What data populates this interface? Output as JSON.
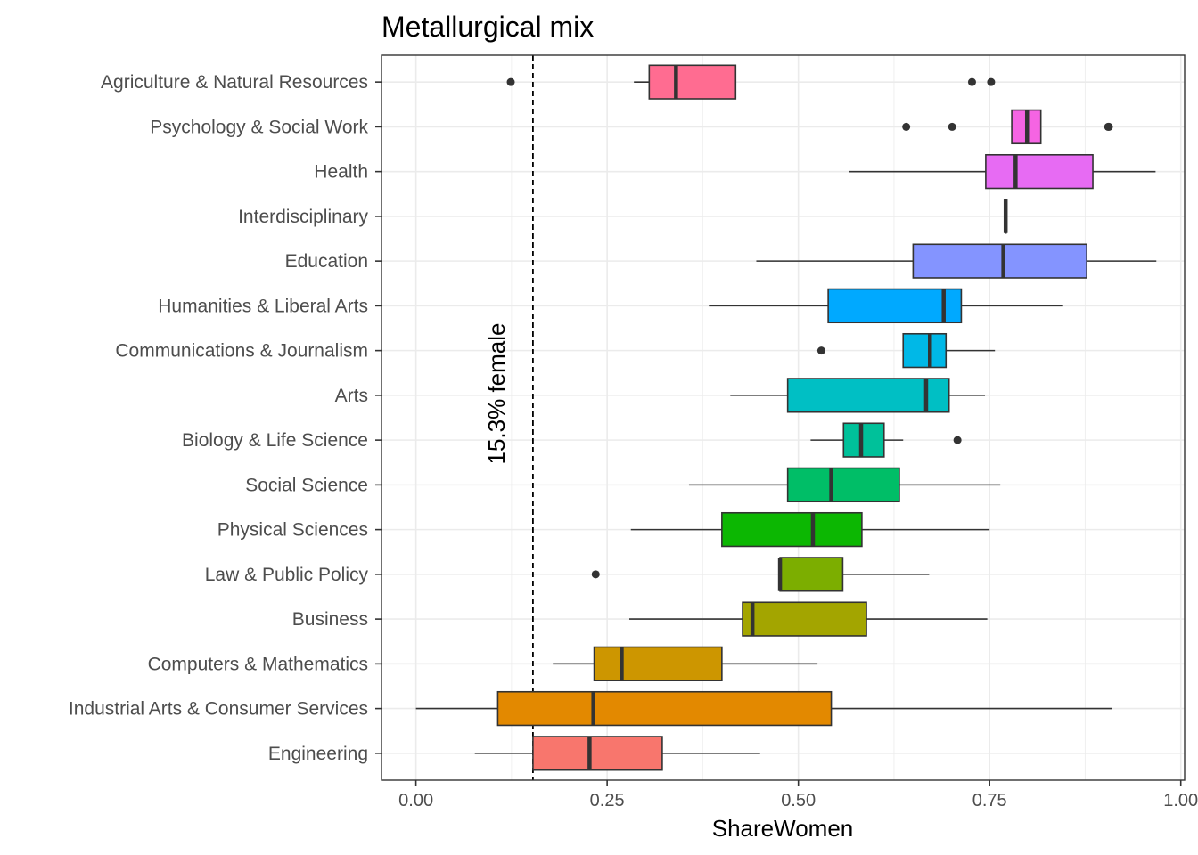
{
  "chart_data": {
    "type": "boxplot",
    "title": "Metallurgical mix",
    "xlabel": "ShareWomen",
    "ylabel": "",
    "xlim": [
      -0.045,
      1.005
    ],
    "x_ticks": [
      0,
      0.25,
      0.5,
      0.75,
      1.0
    ],
    "x_tick_labels": [
      "0.00",
      "0.25",
      "0.50",
      "0.75",
      "1.00"
    ],
    "grid": true,
    "legend": "none",
    "reference_line": {
      "x": 0.153,
      "style": "dashed",
      "label": "15.3% female"
    },
    "categories": [
      {
        "name": "Agriculture & Natural Resources",
        "color": "#FF6C91",
        "whisker_low": 0.285,
        "q1": 0.305,
        "median": 0.34,
        "q3": 0.418,
        "whisker_high": 0.418,
        "outliers": [
          0.124,
          0.727,
          0.752
        ]
      },
      {
        "name": "Psychology & Social Work",
        "color": "#F564E3",
        "whisker_low": 0.779,
        "q1": 0.779,
        "median": 0.799,
        "q3": 0.817,
        "whisker_high": 0.817,
        "outliers": [
          0.641,
          0.701,
          0.905,
          0.906
        ]
      },
      {
        "name": "Health",
        "color": "#E76BF3",
        "whisker_low": 0.566,
        "q1": 0.745,
        "median": 0.784,
        "q3": 0.885,
        "whisker_high": 0.967,
        "outliers": []
      },
      {
        "name": "Interdisciplinary",
        "color": "#C77CFF",
        "whisker_low": 0.771,
        "q1": 0.771,
        "median": 0.771,
        "q3": 0.771,
        "whisker_high": 0.771,
        "outliers": []
      },
      {
        "name": "Education",
        "color": "#8494FF",
        "whisker_low": 0.445,
        "q1": 0.65,
        "median": 0.768,
        "q3": 0.877,
        "whisker_high": 0.968,
        "outliers": []
      },
      {
        "name": "Humanities & Liberal Arts",
        "color": "#00A9FF",
        "whisker_low": 0.383,
        "q1": 0.539,
        "median": 0.69,
        "q3": 0.713,
        "whisker_high": 0.845,
        "outliers": []
      },
      {
        "name": "Communications & Journalism",
        "color": "#00B8E7",
        "whisker_low": 0.637,
        "q1": 0.637,
        "median": 0.672,
        "q3": 0.693,
        "whisker_high": 0.757,
        "outliers": [
          0.53
        ]
      },
      {
        "name": "Arts",
        "color": "#00BFC4",
        "whisker_low": 0.411,
        "q1": 0.486,
        "median": 0.667,
        "q3": 0.697,
        "whisker_high": 0.744,
        "outliers": []
      },
      {
        "name": "Biology & Life Science",
        "color": "#00C19A",
        "whisker_low": 0.516,
        "q1": 0.559,
        "median": 0.582,
        "q3": 0.612,
        "whisker_high": 0.637,
        "outliers": [
          0.708
        ]
      },
      {
        "name": "Social Science",
        "color": "#00BE67",
        "whisker_low": 0.357,
        "q1": 0.486,
        "median": 0.543,
        "q3": 0.632,
        "whisker_high": 0.764,
        "outliers": []
      },
      {
        "name": "Physical Sciences",
        "color": "#0CB702",
        "whisker_low": 0.281,
        "q1": 0.4,
        "median": 0.519,
        "q3": 0.583,
        "whisker_high": 0.75,
        "outliers": []
      },
      {
        "name": "Law & Public Policy",
        "color": "#7CAE00",
        "whisker_low": 0.476,
        "q1": 0.476,
        "median": 0.476,
        "q3": 0.558,
        "whisker_high": 0.671,
        "outliers": [
          0.235
        ]
      },
      {
        "name": "Business",
        "color": "#A3A500",
        "whisker_low": 0.279,
        "q1": 0.427,
        "median": 0.44,
        "q3": 0.589,
        "whisker_high": 0.747,
        "outliers": []
      },
      {
        "name": "Computers & Mathematics",
        "color": "#CD9600",
        "whisker_low": 0.179,
        "q1": 0.233,
        "median": 0.269,
        "q3": 0.4,
        "whisker_high": 0.525,
        "outliers": []
      },
      {
        "name": "Industrial Arts & Consumer Services",
        "color": "#E38900",
        "whisker_low": 0.0,
        "q1": 0.107,
        "median": 0.232,
        "q3": 0.543,
        "whisker_high": 0.91,
        "outliers": []
      },
      {
        "name": "Engineering",
        "color": "#F8766D",
        "whisker_low": 0.077,
        "q1": 0.153,
        "median": 0.227,
        "q3": 0.322,
        "whisker_high": 0.45,
        "outliers": []
      }
    ]
  }
}
